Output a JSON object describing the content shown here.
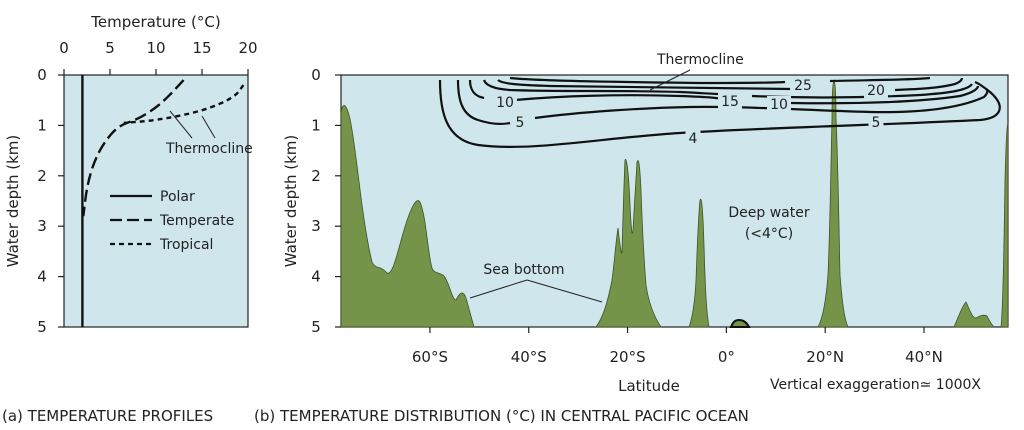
{
  "chart_data": [
    {
      "type": "line",
      "panel_caption": "(a) TEMPERATURE PROFILES",
      "xlabel": "Temperature (°C)",
      "ylabel": "Water depth (km)",
      "xlim": [
        0,
        20
      ],
      "ylim": [
        5,
        0
      ],
      "x_ticks": [
        "0",
        "5",
        "10",
        "15",
        "20"
      ],
      "y_ticks": [
        "0",
        "1",
        "2",
        "3",
        "4",
        "5"
      ],
      "legend": [
        "Polar",
        "Temperate",
        "Tropical"
      ],
      "annotation": "Thermocline",
      "series": [
        {
          "name": "Polar",
          "style": "solid",
          "points": [
            [
              2,
              0
            ],
            [
              2,
              5
            ]
          ]
        },
        {
          "name": "Temperate",
          "style": "long-dash",
          "points": [
            [
              13,
              0.1
            ],
            [
              11.5,
              0.4
            ],
            [
              10,
              0.65
            ],
            [
              8,
              0.88
            ],
            [
              6,
              1.0
            ],
            [
              4.5,
              1.3
            ],
            [
              3.3,
              1.7
            ],
            [
              2.5,
              2.2
            ],
            [
              2.1,
              2.8
            ]
          ]
        },
        {
          "name": "Tropical",
          "style": "short-dash",
          "points": [
            [
              19.5,
              0.2
            ],
            [
              18.5,
              0.45
            ],
            [
              15,
              0.72
            ],
            [
              10,
              0.9
            ],
            [
              6.5,
              0.95
            ]
          ]
        }
      ]
    },
    {
      "type": "contour",
      "panel_caption": "(b) TEMPERATURE DISTRIBUTION (°C) IN CENTRAL PACIFIC OCEAN",
      "xlabel": "Latitude",
      "ylabel": "Water depth (km)",
      "xlim": [
        -78,
        57
      ],
      "ylim": [
        5,
        0
      ],
      "x_ticks": [
        "60°S",
        "40°S",
        "20°S",
        "0°",
        "20°N",
        "40°N"
      ],
      "x_tick_values": [
        -60,
        -40,
        -20,
        0,
        20,
        40
      ],
      "y_ticks": [
        "0",
        "1",
        "2",
        "3",
        "4",
        "5"
      ],
      "contour_labels": [
        "25",
        "20",
        "15",
        "10",
        "10",
        "5",
        "5",
        "4"
      ],
      "contour_levels": [
        4,
        5,
        10,
        15,
        20,
        25
      ],
      "annotations": {
        "thermocline": "Thermocline",
        "deep_water": "Deep water",
        "deep_water_temp": "(<4°C)",
        "sea_bottom": "Sea bottom",
        "exaggeration": "Vertical exaggeration≃ 1000X"
      },
      "colors": {
        "water": "#cfe6ed",
        "seafloor": "#76934a",
        "line": "#111111"
      }
    }
  ]
}
